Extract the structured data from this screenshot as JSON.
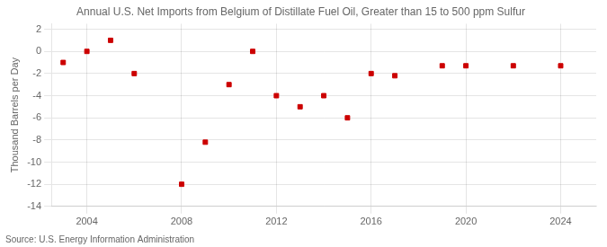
{
  "chart_data": {
    "type": "scatter",
    "title": "Annual U.S. Net Imports from Belgium of Distillate Fuel Oil, Greater than 15 to 500 ppm Sulfur",
    "ylabel": "Thousand Barrels per Day",
    "source": "Source: U.S. Energy Information Administration",
    "x": [
      2003,
      2004,
      2005,
      2006,
      2008,
      2009,
      2010,
      2011,
      2012,
      2013,
      2014,
      2015,
      2016,
      2017,
      2019,
      2020,
      2022,
      2024
    ],
    "values": [
      -1.0,
      0.0,
      1.0,
      -2.0,
      -12.0,
      -8.2,
      -3.0,
      0.0,
      -4.0,
      -5.0,
      -4.0,
      -6.0,
      -2.0,
      -2.2,
      -1.3,
      -1.3,
      -1.3,
      -1.3
    ],
    "color": "#cc0000",
    "marker": "square",
    "xlim": [
      2002.5,
      2025.5
    ],
    "ylim": [
      -14,
      2.5
    ],
    "xticks": [
      2004,
      2008,
      2012,
      2016,
      2020,
      2024
    ],
    "yticks": [
      2,
      0,
      -2,
      -4,
      -6,
      -8,
      -10,
      -12,
      -14
    ],
    "grid": true
  }
}
